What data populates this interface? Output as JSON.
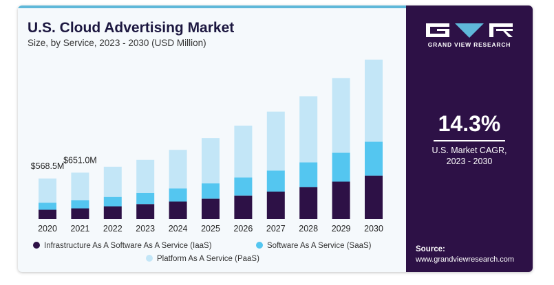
{
  "header": {
    "title": "U.S. Cloud Advertising Market",
    "subtitle": "Size, by Service, 2023 - 2030 (USD Million)"
  },
  "sidebar": {
    "brand": "GRAND VIEW RESEARCH",
    "cagr_value": "14.3%",
    "cagr_label_line1": "U.S. Market CAGR,",
    "cagr_label_line2": "2023 - 2030",
    "source_label": "Source:",
    "source_url": "www.grandviewresearch.com"
  },
  "colors": {
    "iaas": "#2d1146",
    "saas": "#54c6f0",
    "paas": "#c3e6f7",
    "sidebar": "#2d1146",
    "accent": "#5fb8d9"
  },
  "chart_data": {
    "type": "bar",
    "stacked": true,
    "title": "U.S. Cloud Advertising Market",
    "subtitle": "Size, by Service, 2023 - 2030 (USD Million)",
    "categories": [
      "2020",
      "2021",
      "2022",
      "2023",
      "2024",
      "2025",
      "2026",
      "2027",
      "2028",
      "2029",
      "2030"
    ],
    "series": [
      {
        "name": "Infrastructure As A Software As A Service (IaaS)",
        "values": [
          130,
          150,
          178,
          210,
          245,
          285,
          330,
          385,
          450,
          525,
          610
        ]
      },
      {
        "name": "Software As A Service (SaaS)",
        "values": [
          100,
          115,
          133,
          158,
          185,
          215,
          252,
          295,
          345,
          405,
          475
        ]
      },
      {
        "name": "Platform As A Service (PaaS)",
        "values": [
          338.5,
          386,
          422,
          462,
          540,
          635,
          728,
          825,
          925,
          1045,
          1150
        ]
      }
    ],
    "data_labels": [
      {
        "category": "2020",
        "text": "$568.5M"
      },
      {
        "category": "2021",
        "text": "$651.0M"
      }
    ],
    "ylim": [
      0,
      2300
    ],
    "grid": false,
    "legend": "bottom"
  }
}
